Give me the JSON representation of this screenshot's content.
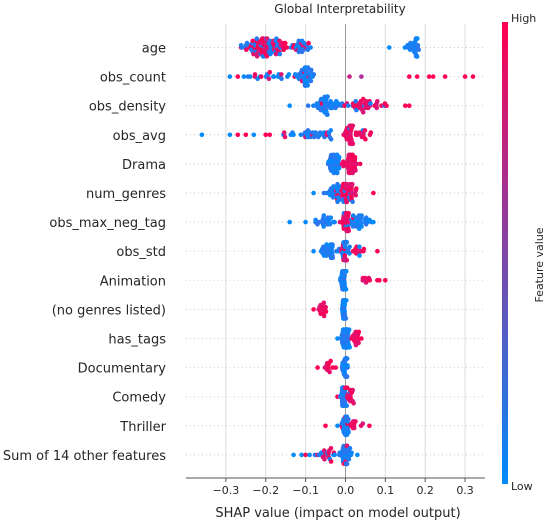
{
  "chart_data": {
    "type": "scatter",
    "title": "Global Interpretability",
    "xlabel": "SHAP value (impact on model output)",
    "xlim": [
      -0.4,
      0.35
    ],
    "xticks": [
      -0.3,
      -0.2,
      -0.1,
      0.0,
      0.1,
      0.2,
      0.3
    ],
    "xtick_labels": [
      "−0.3",
      "−0.2",
      "−0.1",
      "0.0",
      "0.1",
      "0.2",
      "0.3"
    ],
    "colorbar": {
      "label": "Feature value",
      "high": "High",
      "low": "Low",
      "high_color": "#ff0052",
      "low_color": "#008bfb"
    },
    "features": [
      {
        "name": "age",
        "clusters": [
          {
            "center": -0.2,
            "spread": 0.05,
            "count": 90,
            "high_frac": 0.65
          },
          {
            "center": -0.11,
            "spread": 0.02,
            "count": 25,
            "high_frac": 0.25
          },
          {
            "center": 0.17,
            "spread": 0.015,
            "count": 28,
            "high_frac": 0.0
          }
        ],
        "singles": [
          {
            "x": 0.11,
            "h": 0.0
          },
          {
            "x": -0.24,
            "h": 1.0
          }
        ]
      },
      {
        "name": "obs_count",
        "clusters": [
          {
            "center": -0.1,
            "spread": 0.02,
            "count": 40,
            "high_frac": 0.05
          },
          {
            "center": -0.19,
            "spread": 0.06,
            "count": 25,
            "high_frac": 0.15
          }
        ],
        "singles": [
          {
            "x": 0.16,
            "h": 1.0
          },
          {
            "x": 0.18,
            "h": 1.0
          },
          {
            "x": 0.22,
            "h": 1.0
          },
          {
            "x": 0.25,
            "h": 1.0
          },
          {
            "x": 0.3,
            "h": 1.0
          },
          {
            "x": 0.32,
            "h": 1.0
          },
          {
            "x": 0.21,
            "h": 1.0
          },
          {
            "x": 0.04,
            "h": 0.7
          },
          {
            "x": 0.01,
            "h": 0.8
          },
          {
            "x": -0.29,
            "h": 0.0
          },
          {
            "x": -0.27,
            "h": 1.0
          }
        ]
      },
      {
        "name": "obs_density",
        "clusters": [
          {
            "center": -0.05,
            "spread": 0.025,
            "count": 45,
            "high_frac": 0.05
          },
          {
            "center": 0.05,
            "spread": 0.05,
            "count": 40,
            "high_frac": 0.9
          }
        ],
        "singles": [
          {
            "x": -0.14,
            "h": 0.0
          },
          {
            "x": 0.15,
            "h": 1.0
          },
          {
            "x": 0.16,
            "h": 1.0
          }
        ]
      },
      {
        "name": "obs_avg",
        "clusters": [
          {
            "center": 0.01,
            "spread": 0.015,
            "count": 35,
            "high_frac": 0.95
          },
          {
            "center": -0.08,
            "spread": 0.06,
            "count": 35,
            "high_frac": 0.3
          },
          {
            "center": 0.05,
            "spread": 0.02,
            "count": 12,
            "high_frac": 0.9
          }
        ],
        "singles": [
          {
            "x": -0.36,
            "h": 0.0
          },
          {
            "x": -0.29,
            "h": 0.0
          },
          {
            "x": -0.27,
            "h": 1.0
          },
          {
            "x": -0.25,
            "h": 1.0
          },
          {
            "x": -0.23,
            "h": 0.0
          },
          {
            "x": -0.2,
            "h": 1.0
          },
          {
            "x": -0.19,
            "h": 1.0
          }
        ]
      },
      {
        "name": "Drama",
        "clusters": [
          {
            "center": -0.03,
            "spread": 0.015,
            "count": 40,
            "high_frac": 0.0
          },
          {
            "center": 0.015,
            "spread": 0.015,
            "count": 40,
            "high_frac": 1.0
          }
        ],
        "singles": []
      },
      {
        "name": "num_genres",
        "clusters": [
          {
            "center": -0.02,
            "spread": 0.02,
            "count": 35,
            "high_frac": 0.1
          },
          {
            "center": 0.01,
            "spread": 0.02,
            "count": 35,
            "high_frac": 0.85
          }
        ],
        "singles": [
          {
            "x": 0.07,
            "h": 1.0
          },
          {
            "x": -0.08,
            "h": 0.0
          }
        ]
      },
      {
        "name": "obs_max_neg_tag",
        "clusters": [
          {
            "center": 0.0,
            "spread": 0.01,
            "count": 30,
            "high_frac": 0.95
          },
          {
            "center": 0.03,
            "spread": 0.025,
            "count": 30,
            "high_frac": 0.0
          },
          {
            "center": -0.05,
            "spread": 0.02,
            "count": 20,
            "high_frac": 0.05
          }
        ],
        "singles": [
          {
            "x": -0.14,
            "h": 0.0
          },
          {
            "x": -0.1,
            "h": 0.0
          },
          {
            "x": 0.07,
            "h": 0.0
          }
        ]
      },
      {
        "name": "obs_std",
        "clusters": [
          {
            "center": 0.0,
            "spread": 0.01,
            "count": 35,
            "high_frac": 0.6
          },
          {
            "center": -0.04,
            "spread": 0.025,
            "count": 30,
            "high_frac": 0.0
          },
          {
            "center": 0.03,
            "spread": 0.02,
            "count": 15,
            "high_frac": 0.8
          }
        ],
        "singles": [
          {
            "x": 0.08,
            "h": 1.0
          },
          {
            "x": -0.08,
            "h": 0.0
          }
        ]
      },
      {
        "name": "Animation",
        "clusters": [
          {
            "center": -0.005,
            "spread": 0.005,
            "count": 40,
            "high_frac": 0.0
          },
          {
            "center": 0.05,
            "spread": 0.01,
            "count": 8,
            "high_frac": 1.0
          }
        ],
        "singles": [
          {
            "x": 0.08,
            "h": 1.0
          },
          {
            "x": 0.085,
            "h": 1.0
          },
          {
            "x": 0.1,
            "h": 1.0
          }
        ]
      },
      {
        "name": "(no genres listed)",
        "clusters": [
          {
            "center": -0.005,
            "spread": 0.005,
            "count": 40,
            "high_frac": 0.0
          },
          {
            "center": -0.06,
            "spread": 0.01,
            "count": 15,
            "high_frac": 1.0
          }
        ],
        "singles": [
          {
            "x": -0.08,
            "h": 1.0
          }
        ]
      },
      {
        "name": "has_tags",
        "clusters": [
          {
            "center": 0.0,
            "spread": 0.008,
            "count": 35,
            "high_frac": 0.0
          },
          {
            "center": 0.025,
            "spread": 0.01,
            "count": 15,
            "high_frac": 1.0
          }
        ],
        "singles": [
          {
            "x": -0.02,
            "h": 0.0
          },
          {
            "x": 0.04,
            "h": 1.0
          }
        ]
      },
      {
        "name": "Documentary",
        "clusters": [
          {
            "center": 0.0,
            "spread": 0.006,
            "count": 35,
            "high_frac": 0.0
          },
          {
            "center": -0.04,
            "spread": 0.015,
            "count": 12,
            "high_frac": 1.0
          }
        ],
        "singles": [
          {
            "x": -0.07,
            "h": 1.0
          }
        ]
      },
      {
        "name": "Comedy",
        "clusters": [
          {
            "center": -0.005,
            "spread": 0.006,
            "count": 35,
            "high_frac": 0.1
          },
          {
            "center": 0.01,
            "spread": 0.008,
            "count": 15,
            "high_frac": 0.95
          }
        ],
        "singles": [
          {
            "x": -0.02,
            "h": 1.0
          }
        ]
      },
      {
        "name": "Thriller",
        "clusters": [
          {
            "center": 0.0,
            "spread": 0.008,
            "count": 35,
            "high_frac": 0.1
          },
          {
            "center": 0.02,
            "spread": 0.015,
            "count": 10,
            "high_frac": 1.0
          }
        ],
        "singles": [
          {
            "x": -0.05,
            "h": 1.0
          },
          {
            "x": 0.06,
            "h": 1.0
          },
          {
            "x": -0.02,
            "h": 0.0
          }
        ]
      },
      {
        "name": "Sum of 14 other features",
        "clusters": [
          {
            "center": 0.0,
            "spread": 0.015,
            "count": 40,
            "high_frac": 0.05
          },
          {
            "center": -0.05,
            "spread": 0.02,
            "count": 20,
            "high_frac": 0.6
          }
        ],
        "singles": [
          {
            "x": -0.13,
            "h": 0.0
          },
          {
            "x": -0.11,
            "h": 0.0
          },
          {
            "x": -0.09,
            "h": 0.0
          },
          {
            "x": -0.1,
            "h": 1.0
          },
          {
            "x": 0.03,
            "h": 0.0
          }
        ]
      }
    ]
  }
}
